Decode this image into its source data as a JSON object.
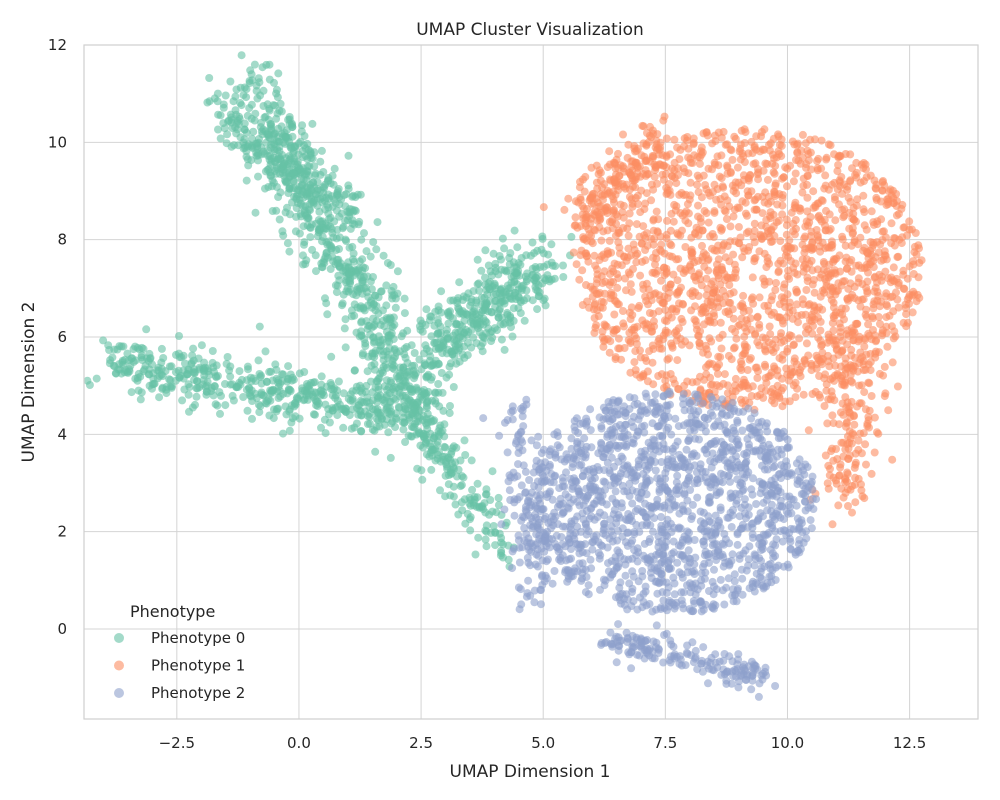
{
  "chart_data": {
    "type": "scatter",
    "title": "UMAP Cluster Visualization",
    "xlabel": "UMAP Dimension 1",
    "ylabel": "UMAP Dimension 2",
    "xlim": [
      -4.4,
      13.9
    ],
    "ylim": [
      -1.85,
      12.0
    ],
    "xticks": [
      -2.5,
      0.0,
      2.5,
      5.0,
      7.5,
      10.0,
      12.5
    ],
    "xtick_labels": [
      "−2.5",
      "0.0",
      "2.5",
      "5.0",
      "7.5",
      "10.0",
      "12.5"
    ],
    "yticks": [
      0,
      2,
      4,
      6,
      8,
      10,
      12
    ],
    "ytick_labels": [
      "0",
      "2",
      "4",
      "6",
      "8",
      "10",
      "12"
    ],
    "grid": true,
    "legend": {
      "title": "Phenotype",
      "placement": "lower-left"
    },
    "point_alpha": 0.6,
    "series": [
      {
        "name": "Phenotype 0",
        "color": "#66c2a5",
        "clusters": [
          {
            "shape": "line",
            "from": [
              -1.0,
              11.2
            ],
            "to": [
              2.6,
              4.2
            ],
            "spread": 0.55,
            "count": 700
          },
          {
            "shape": "line",
            "from": [
              -3.9,
              5.5
            ],
            "to": [
              2.6,
              4.4
            ],
            "spread": 0.5,
            "count": 520
          },
          {
            "shape": "line",
            "from": [
              2.4,
              4.4
            ],
            "to": [
              4.2,
              1.6
            ],
            "spread": 0.35,
            "count": 160
          },
          {
            "shape": "line",
            "from": [
              2.6,
              5.6
            ],
            "to": [
              5.0,
              7.6
            ],
            "spread": 0.55,
            "count": 380
          },
          {
            "shape": "line",
            "from": [
              -1.7,
              10.6
            ],
            "to": [
              1.2,
              8.4
            ],
            "spread": 0.4,
            "count": 180
          }
        ]
      },
      {
        "name": "Phenotype 1",
        "color": "#fc8d62",
        "clusters": [
          {
            "shape": "ellipse",
            "center": [
              9.2,
              7.4
            ],
            "radius": [
              3.6,
              2.9
            ],
            "count": 1700
          },
          {
            "shape": "line",
            "from": [
              11.5,
              6.0
            ],
            "to": [
              11.1,
              2.6
            ],
            "spread": 0.55,
            "count": 180
          },
          {
            "shape": "line",
            "from": [
              5.5,
              8.4
            ],
            "to": [
              7.5,
              10.2
            ],
            "spread": 0.45,
            "count": 160
          }
        ]
      },
      {
        "name": "Phenotype 2",
        "color": "#8da0cb",
        "clusters": [
          {
            "shape": "ellipse",
            "center": [
              7.6,
              2.6
            ],
            "radius": [
              3.0,
              2.3
            ],
            "count": 1500
          },
          {
            "shape": "line",
            "from": [
              6.3,
              -0.2
            ],
            "to": [
              9.6,
              -1.0
            ],
            "spread": 0.25,
            "count": 170
          },
          {
            "shape": "line",
            "from": [
              4.4,
              4.6
            ],
            "to": [
              4.8,
              0.6
            ],
            "spread": 0.35,
            "count": 120
          }
        ]
      }
    ]
  }
}
